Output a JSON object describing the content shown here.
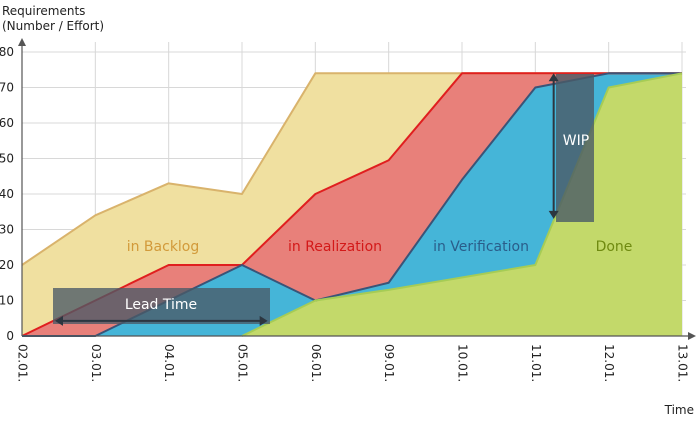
{
  "chart_data": {
    "type": "area",
    "ylabel_lines": [
      "Requirements",
      "(Number / Effort)"
    ],
    "xlabel": "Time",
    "categories": [
      "02.01.",
      "03.01.",
      "04.01.",
      "05.01.",
      "06.01.",
      "09.01.",
      "10.01.",
      "11.01.",
      "12.01.",
      "13.01."
    ],
    "ylim": [
      0,
      80
    ],
    "yticks": [
      0,
      10,
      20,
      30,
      40,
      50,
      60,
      70,
      80
    ],
    "grid": true,
    "series": [
      {
        "name": "in Backlog",
        "color": "#f0e0a0",
        "line": "#d9b36c",
        "values": [
          20,
          34,
          43,
          40,
          74,
          74,
          74,
          74,
          74,
          74
        ]
      },
      {
        "name": "in Realization",
        "color": "#e8807a",
        "line": "#e01f1f",
        "values": [
          0,
          10,
          20,
          20,
          40,
          49.5,
          74,
          74,
          74,
          74
        ]
      },
      {
        "name": "in Verification",
        "color": "#45b5d8",
        "line": "#3a5478",
        "x": [
          0,
          1,
          3,
          4,
          5,
          6,
          7,
          8,
          9
        ],
        "values": [
          0,
          0,
          20,
          10,
          15,
          44,
          70,
          74,
          74
        ]
      },
      {
        "name": "Done",
        "color": "#c3d96a",
        "line": "#a6cc55",
        "x": [
          3,
          4,
          5,
          7,
          8,
          9
        ],
        "values": [
          0,
          10,
          13,
          20,
          70,
          74
        ]
      }
    ],
    "annotations": [
      {
        "label": "Lead Time",
        "type": "horizontal-span",
        "x_from": 0.45,
        "x_to": 3.35,
        "y": 2
      },
      {
        "label": "WIP",
        "type": "vertical-span",
        "x": 7.25,
        "y_from": 33,
        "y_to": 74
      }
    ]
  }
}
